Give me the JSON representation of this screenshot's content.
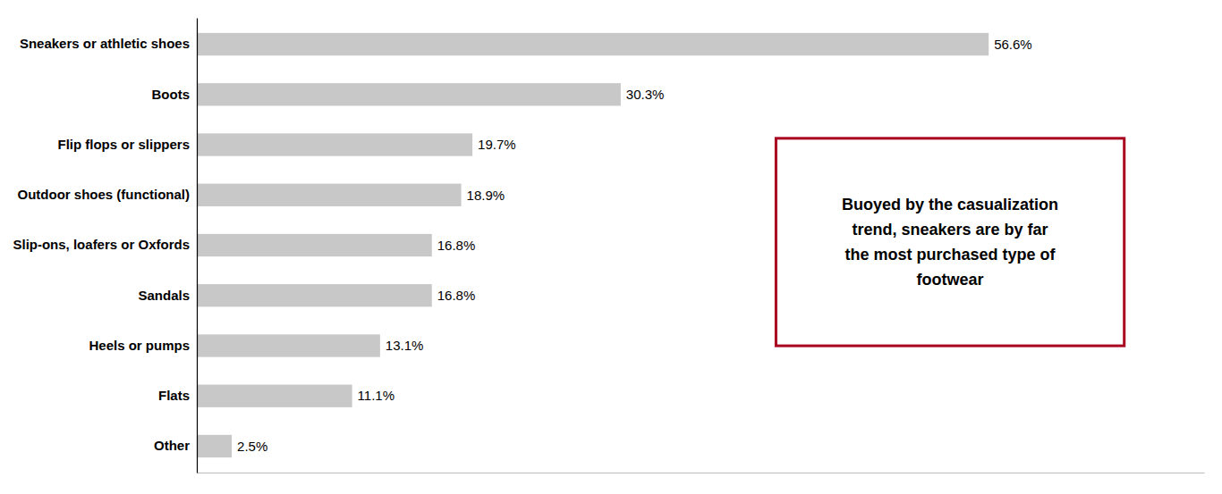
{
  "chart_data": {
    "type": "bar",
    "orientation": "horizontal",
    "categories": [
      "Sneakers or athletic shoes",
      "Boots",
      "Flip flops or slippers",
      "Outdoor shoes (functional)",
      "Slip-ons, loafers or Oxfords",
      "Sandals",
      "Heels or pumps",
      "Flats",
      "Other"
    ],
    "values": [
      56.6,
      30.3,
      19.7,
      18.9,
      16.8,
      16.8,
      13.1,
      11.1,
      2.5
    ],
    "value_labels": [
      "56.6%",
      "30.3%",
      "19.7%",
      "18.9%",
      "16.8%",
      "16.8%",
      "13.1%",
      "11.1%",
      "2.5%"
    ],
    "color": "#c8c8c8",
    "xlim": [
      0,
      72
    ],
    "data_labels": true,
    "tick_labels": "y",
    "grid": false,
    "annotations": [
      {
        "text": "Buoyed by the casualization\ntrend, sneakers are by far\nthe most purchased type of\nfootwear",
        "color": "#a8001e"
      }
    ]
  }
}
